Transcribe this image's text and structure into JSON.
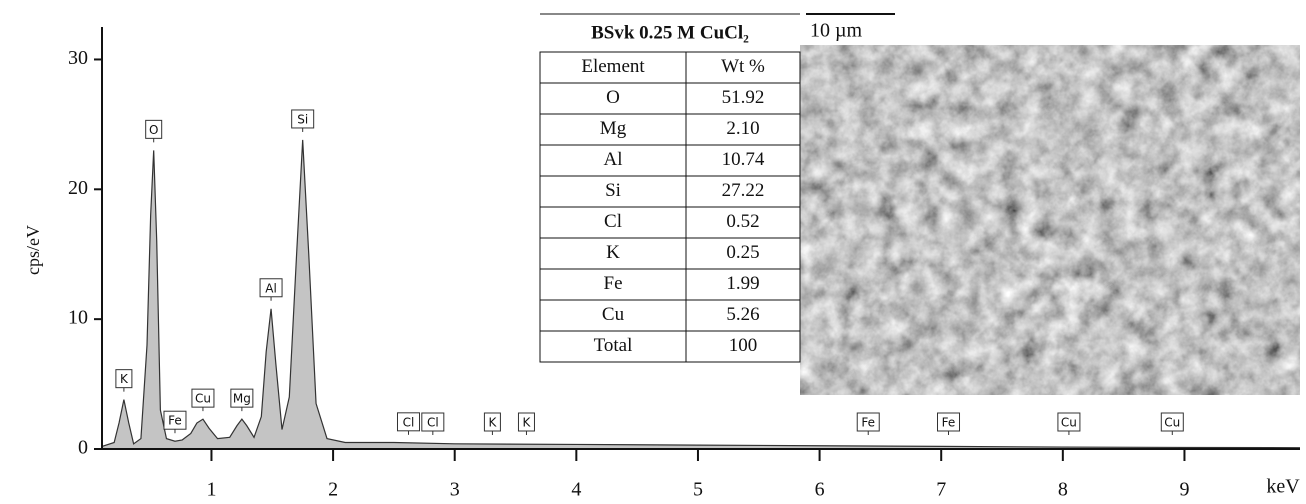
{
  "chart_data": {
    "type": "line",
    "ylabel": "cps/eV",
    "xlabel": "keV",
    "xlim": [
      0.1,
      9.95
    ],
    "ylim": [
      0,
      32.5
    ],
    "xticks": [
      1,
      2,
      3,
      4,
      5,
      6,
      7,
      8,
      9
    ],
    "yticks": [
      0,
      10,
      20,
      30
    ],
    "color": "#c4c4c4",
    "x": [
      0.1,
      0.2,
      0.24,
      0.28,
      0.32,
      0.36,
      0.42,
      0.47,
      0.5,
      0.525,
      0.55,
      0.58,
      0.63,
      0.7,
      0.76,
      0.83,
      0.88,
      0.93,
      0.98,
      1.05,
      1.15,
      1.21,
      1.25,
      1.29,
      1.35,
      1.41,
      1.45,
      1.49,
      1.53,
      1.58,
      1.64,
      1.7,
      1.75,
      1.8,
      1.86,
      1.95,
      2.1,
      2.5,
      3.0,
      4.0,
      5.0,
      6.0,
      7.0,
      8.0,
      9.0,
      9.95
    ],
    "values": [
      0.2,
      0.5,
      2.0,
      3.8,
      2.0,
      0.4,
      0.8,
      8,
      18,
      23,
      16,
      3,
      0.8,
      0.6,
      0.7,
      1.2,
      2.0,
      2.3,
      1.6,
      0.8,
      0.9,
      1.8,
      2.3,
      1.8,
      0.9,
      2.5,
      7.5,
      10.8,
      6.5,
      1.5,
      4.0,
      15,
      23.8,
      15,
      3.5,
      0.8,
      0.5,
      0.5,
      0.4,
      0.35,
      0.3,
      0.25,
      0.2,
      0.15,
      0.12,
      0.1
    ],
    "peaks": [
      {
        "label": "K",
        "energy": 0.28
      },
      {
        "label": "O",
        "energy": 0.525
      },
      {
        "label": "Fe",
        "energy": 0.7
      },
      {
        "label": "Cu",
        "energy": 0.93
      },
      {
        "label": "Mg",
        "energy": 1.25
      },
      {
        "label": "Al",
        "energy": 1.49
      },
      {
        "label": "Si",
        "energy": 1.75
      },
      {
        "label": "Cl",
        "energy": 2.62
      },
      {
        "label": "Cl",
        "energy": 2.82
      },
      {
        "label": "K",
        "energy": 3.31
      },
      {
        "label": "K",
        "energy": 3.59
      },
      {
        "label": "Fe",
        "energy": 6.4
      },
      {
        "label": "Fe",
        "energy": 7.06
      },
      {
        "label": "Cu",
        "energy": 8.05
      },
      {
        "label": "Cu",
        "energy": 8.9
      }
    ]
  },
  "table": {
    "title": "BSvk 0.25 M CuCl₂",
    "header": [
      "Element",
      "Wt %"
    ],
    "rows": [
      [
        "O",
        "51.92"
      ],
      [
        "Mg",
        "2.10"
      ],
      [
        "Al",
        "10.74"
      ],
      [
        "Si",
        "27.22"
      ],
      [
        "Cl",
        "0.52"
      ],
      [
        "K",
        "0.25"
      ],
      [
        "Fe",
        "1.99"
      ],
      [
        "Cu",
        "5.26"
      ],
      [
        "Total",
        "100"
      ]
    ]
  },
  "scale_bar": "10 µm"
}
